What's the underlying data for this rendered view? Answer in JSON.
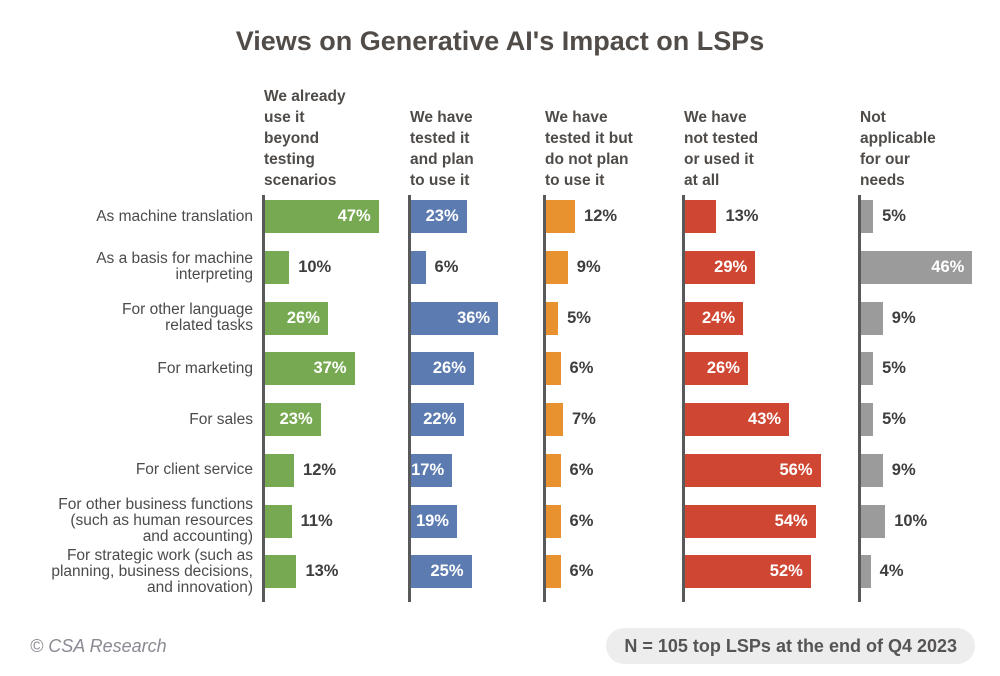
{
  "chart_data": {
    "type": "bar",
    "orientation": "horizontal",
    "title": "Views on Generative AI's Impact on LSPs",
    "unit": "%",
    "xlim": [
      0,
      58
    ],
    "grid": false,
    "value_labels": "on bars, white inside when bar is long enough, dark outside otherwise",
    "categories": [
      "As machine translation",
      "As a basis for machine\ninterpreting",
      "For other language\nrelated tasks",
      "For marketing",
      "For sales",
      "For client service",
      "For other business functions\n(such as human resources\nand accounting)",
      "For strategic work (such as\nplanning, business decisions,\nand innovation)"
    ],
    "series": [
      {
        "name": "We already use it beyond testing scenarios",
        "header": "We already\nuse it\nbeyond\ntesting\nscenarios",
        "color": "#76a951",
        "values": [
          47,
          10,
          26,
          37,
          23,
          12,
          11,
          13
        ]
      },
      {
        "name": "We have tested it and plan to use it",
        "header": "We have\ntested it\nand plan\nto use it",
        "color": "#5c7cb1",
        "values": [
          23,
          6,
          36,
          26,
          22,
          17,
          19,
          25
        ]
      },
      {
        "name": "We have tested it but do not plan to use it",
        "header": "We have\ntested it but\ndo not plan\nto use it",
        "color": "#e8912f",
        "values": [
          12,
          9,
          5,
          6,
          7,
          6,
          6,
          6
        ]
      },
      {
        "name": "We have not tested or used it at all",
        "header": "We have\nnot tested\nor used it\nat all",
        "color": "#cf4733",
        "values": [
          13,
          29,
          24,
          26,
          43,
          56,
          54,
          52
        ]
      },
      {
        "name": "Not applicable for our needs",
        "header": "Not\napplicable\nfor our\nneeds",
        "color": "#9b9b9b",
        "values": [
          5,
          46,
          9,
          5,
          5,
          9,
          10,
          4
        ]
      }
    ]
  },
  "colors": {
    "title_text": "#514c48",
    "axis_line": "#58595b",
    "row_label_text": "#4b4b4d",
    "value_label_outside": "#3e3e40",
    "value_label_inside": "#ffffff",
    "footer_italic_text": "#8a8a94",
    "pill_background": "#ededee",
    "pill_text": "#575554"
  },
  "footer": {
    "copyright": "© CSA Research",
    "note": "N = 105 top LSPs at the end of Q4 2023"
  }
}
